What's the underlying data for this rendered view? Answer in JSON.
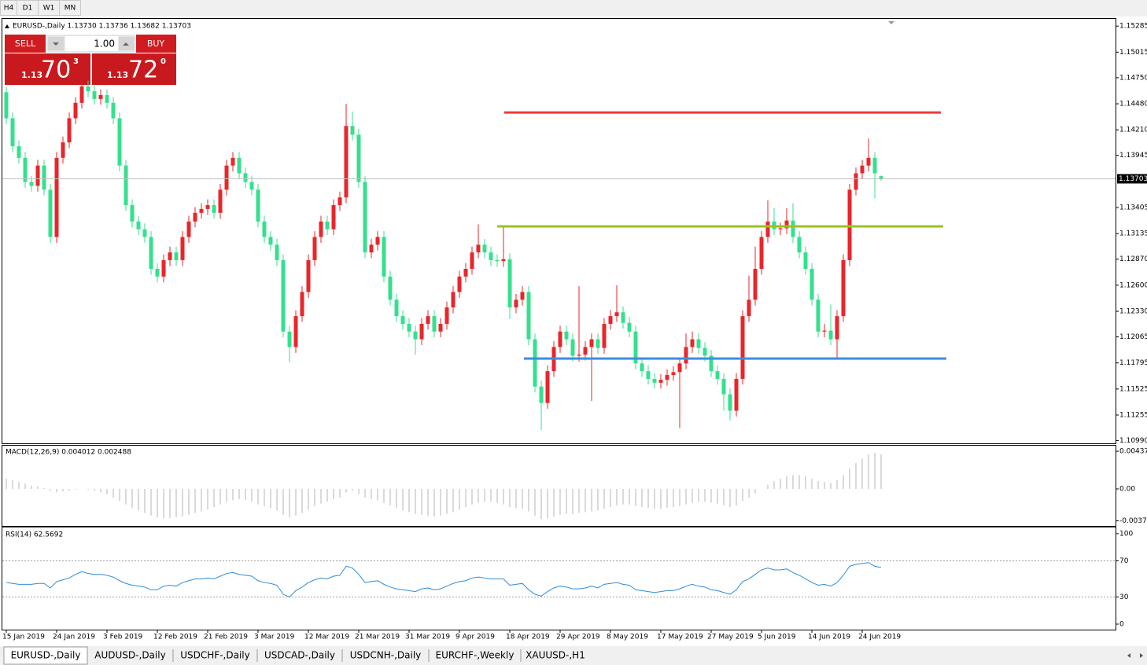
{
  "toolbar": {
    "timeframes": [
      "H4",
      "D1",
      "W1",
      "MN"
    ]
  },
  "trade_panel": {
    "sell": "SELL",
    "buy": "BUY",
    "lots": "1.00",
    "sell_big": "1.13",
    "sell_main": "70",
    "sell_sup": "3",
    "buy_big": "1.13",
    "buy_main": "72",
    "buy_sup": "0"
  },
  "tabs": [
    "EURUSD-,Daily",
    "AUDUSD-,Daily",
    "USDCHF-,Daily",
    "USDCAD-,Daily",
    "USDCNH-,Daily",
    "EURCHF-,Weekly",
    "XAUUSD-,H1"
  ],
  "chart_data": [
    {
      "type": "candlestick",
      "title": "EURUSD-,Daily  1.13730 1.13736 1.13682 1.13703",
      "up_color": "#e8262b",
      "down_color": "#34e08e",
      "ylim": [
        1.1097,
        1.1536
      ],
      "yticks": [
        1.15285,
        1.15015,
        {
          "value": 1.1475,
          "label": "1.14750"
        },
        {
          "value": 1.1448,
          "label": "1.14480"
        },
        {
          "value": 1.1421,
          "label": "1.14210"
        },
        1.13945,
        1.13405,
        1.13135,
        {
          "value": 1.1287,
          "label": "1.12870"
        },
        {
          "value": 1.126,
          "label": "1.12600"
        },
        {
          "value": 1.1233,
          "label": "1.12330"
        },
        1.12065,
        1.11795,
        1.11525,
        1.11255,
        {
          "value": 1.1099,
          "label": "1.10990"
        }
      ],
      "current_price": 1.13703,
      "levels": [
        {
          "value": 1.1439,
          "color": "#f03a3a"
        },
        {
          "value": 1.1321,
          "color": "#9ac31c"
        },
        {
          "value": 1.1184,
          "color": "#3b8ee0"
        }
      ],
      "date_labels": [
        "15 Jan 2019",
        "24 Jan 2019",
        "3 Feb 2019",
        "12 Feb 2019",
        "21 Feb 2019",
        "3 Mar 2019",
        "12 Mar 2019",
        "21 Mar 2019",
        "31 Mar 2019",
        "9 Apr 2019",
        "18 Apr 2019",
        "29 Apr 2019",
        "8 May 2019",
        "17 May 2019",
        "27 May 2019",
        "5 Jun 2019",
        "14 Jun 2019",
        "24 Jun 2019"
      ],
      "candles": [
        [
          1.146,
          1.1466,
          1.1427,
          1.1433
        ],
        [
          1.1433,
          1.1439,
          1.1398,
          1.1404
        ],
        [
          1.1404,
          1.141,
          1.1386,
          1.1392
        ],
        [
          1.1392,
          1.1398,
          1.1361,
          1.1367
        ],
        [
          1.1367,
          1.1373,
          1.1357,
          1.1363
        ],
        [
          1.1363,
          1.139,
          1.1357,
          1.1384
        ],
        [
          1.1384,
          1.139,
          1.1353,
          1.1359
        ],
        [
          1.1359,
          1.1365,
          1.1304,
          1.131
        ],
        [
          1.131,
          1.1398,
          1.1304,
          1.1392
        ],
        [
          1.1392,
          1.1414,
          1.1386,
          1.1408
        ],
        [
          1.1408,
          1.1439,
          1.1402,
          1.1433
        ],
        [
          1.1433,
          1.1455,
          1.1427,
          1.1449
        ],
        [
          1.1449,
          1.1472,
          1.1443,
          1.1466
        ],
        [
          1.1466,
          1.1472,
          1.1455,
          1.1461
        ],
        [
          1.1461,
          1.1467,
          1.1447,
          1.1453
        ],
        [
          1.1453,
          1.1463,
          1.1447,
          1.1457
        ],
        [
          1.1457,
          1.1463,
          1.1443,
          1.1449
        ],
        [
          1.1449,
          1.1455,
          1.1427,
          1.1433
        ],
        [
          1.1433,
          1.1439,
          1.1378,
          1.1384
        ],
        [
          1.1384,
          1.139,
          1.1337,
          1.1343
        ],
        [
          1.1343,
          1.1349,
          1.132,
          1.1326
        ],
        [
          1.1326,
          1.1332,
          1.1312,
          1.1318
        ],
        [
          1.1318,
          1.1324,
          1.1304,
          1.131
        ],
        [
          1.131,
          1.1316,
          1.1271,
          1.1277
        ],
        [
          1.1277,
          1.1283,
          1.1263,
          1.1269
        ],
        [
          1.1269,
          1.1292,
          1.1263,
          1.1286
        ],
        [
          1.1286,
          1.13,
          1.128,
          1.1294
        ],
        [
          1.1294,
          1.13,
          1.128,
          1.1286
        ],
        [
          1.1286,
          1.1316,
          1.128,
          1.131
        ],
        [
          1.131,
          1.1332,
          1.1304,
          1.1326
        ],
        [
          1.1326,
          1.1341,
          1.132,
          1.1335
        ],
        [
          1.1335,
          1.1345,
          1.1329,
          1.1339
        ],
        [
          1.1339,
          1.1349,
          1.1333,
          1.1343
        ],
        [
          1.1343,
          1.1349,
          1.1329,
          1.1335
        ],
        [
          1.1335,
          1.1365,
          1.1329,
          1.1359
        ],
        [
          1.1359,
          1.139,
          1.1353,
          1.1384
        ],
        [
          1.1384,
          1.1398,
          1.1378,
          1.1392
        ],
        [
          1.1392,
          1.1398,
          1.137,
          1.1376
        ],
        [
          1.1376,
          1.1382,
          1.1361,
          1.1367
        ],
        [
          1.1367,
          1.1373,
          1.1353,
          1.1359
        ],
        [
          1.1359,
          1.1365,
          1.132,
          1.1326
        ],
        [
          1.1326,
          1.1332,
          1.1304,
          1.131
        ],
        [
          1.131,
          1.1316,
          1.1296,
          1.1302
        ],
        [
          1.1302,
          1.1308,
          1.128,
          1.1286
        ],
        [
          1.1286,
          1.1292,
          1.1206,
          1.1212
        ],
        [
          1.1212,
          1.1218,
          1.118,
          1.1196
        ],
        [
          1.1196,
          1.1234,
          1.119,
          1.1228
        ],
        [
          1.1228,
          1.1259,
          1.1222,
          1.1253
        ],
        [
          1.1253,
          1.1292,
          1.1247,
          1.1286
        ],
        [
          1.1286,
          1.1316,
          1.128,
          1.131
        ],
        [
          1.131,
          1.1332,
          1.1304,
          1.1326
        ],
        [
          1.1326,
          1.1332,
          1.1312,
          1.1318
        ],
        [
          1.1318,
          1.1349,
          1.1312,
          1.1343
        ],
        [
          1.1343,
          1.1357,
          1.1337,
          1.1351
        ],
        [
          1.1351,
          1.1448,
          1.1345,
          1.1425
        ],
        [
          1.1425,
          1.144,
          1.141,
          1.1416
        ],
        [
          1.1416,
          1.1422,
          1.1361,
          1.1367
        ],
        [
          1.1367,
          1.1373,
          1.1288,
          1.1294
        ],
        [
          1.1294,
          1.1308,
          1.1288,
          1.1302
        ],
        [
          1.1302,
          1.1316,
          1.1296,
          1.131
        ],
        [
          1.131,
          1.1316,
          1.1263,
          1.1269
        ],
        [
          1.1269,
          1.1275,
          1.1239,
          1.1245
        ],
        [
          1.1245,
          1.1251,
          1.1222,
          1.1228
        ],
        [
          1.1228,
          1.1234,
          1.1214,
          1.122
        ],
        [
          1.122,
          1.1226,
          1.1206,
          1.1212
        ],
        [
          1.1212,
          1.1218,
          1.1188,
          1.1204
        ],
        [
          1.1204,
          1.1226,
          1.1198,
          1.122
        ],
        [
          1.122,
          1.1234,
          1.1214,
          1.1228
        ],
        [
          1.1228,
          1.1234,
          1.1206,
          1.1212
        ],
        [
          1.1212,
          1.1226,
          1.1206,
          1.122
        ],
        [
          1.122,
          1.1243,
          1.1214,
          1.1237
        ],
        [
          1.1237,
          1.1259,
          1.1231,
          1.1253
        ],
        [
          1.1253,
          1.1275,
          1.1247,
          1.1269
        ],
        [
          1.1269,
          1.1283,
          1.1263,
          1.1277
        ],
        [
          1.1277,
          1.13,
          1.1271,
          1.1294
        ],
        [
          1.1294,
          1.1323,
          1.1288,
          1.1302
        ],
        [
          1.1302,
          1.1308,
          1.1288,
          1.1294
        ],
        [
          1.1294,
          1.13,
          1.128,
          1.1286
        ],
        [
          1.1286,
          1.1292,
          1.1279,
          1.1285
        ],
        [
          1.1285,
          1.1321,
          1.1279,
          1.1287
        ],
        [
          1.1287,
          1.1293,
          1.1225,
          1.1237
        ],
        [
          1.1237,
          1.1251,
          1.1231,
          1.1245
        ],
        [
          1.1245,
          1.1259,
          1.1239,
          1.1253
        ],
        [
          1.1253,
          1.1259,
          1.1198,
          1.1204
        ],
        [
          1.1204,
          1.121,
          1.1149,
          1.1155
        ],
        [
          1.1155,
          1.1161,
          1.111,
          1.1138
        ],
        [
          1.1138,
          1.1177,
          1.1132,
          1.1171
        ],
        [
          1.1171,
          1.1202,
          1.1165,
          1.1196
        ],
        [
          1.1196,
          1.1218,
          1.119,
          1.1212
        ],
        [
          1.1212,
          1.1218,
          1.1198,
          1.1204
        ],
        [
          1.1204,
          1.121,
          1.1181,
          1.1187
        ],
        [
          1.1187,
          1.1259,
          1.1181,
          1.1188
        ],
        [
          1.1188,
          1.1202,
          1.1182,
          1.1196
        ],
        [
          1.1196,
          1.121,
          1.114,
          1.1204
        ],
        [
          1.1204,
          1.121,
          1.1189,
          1.1195
        ],
        [
          1.1195,
          1.1226,
          1.1189,
          1.122
        ],
        [
          1.122,
          1.1234,
          1.1214,
          1.1228
        ],
        [
          1.1228,
          1.126,
          1.1222,
          1.1232
        ],
        [
          1.1232,
          1.1238,
          1.1215,
          1.1221
        ],
        [
          1.1221,
          1.1227,
          1.1206,
          1.1212
        ],
        [
          1.1212,
          1.1218,
          1.1173,
          1.1179
        ],
        [
          1.1179,
          1.1185,
          1.1165,
          1.1171
        ],
        [
          1.1171,
          1.1177,
          1.1157,
          1.1163
        ],
        [
          1.1163,
          1.1169,
          1.1153,
          1.1159
        ],
        [
          1.1159,
          1.1168,
          1.1153,
          1.1162
        ],
        [
          1.1162,
          1.1173,
          1.1156,
          1.1167
        ],
        [
          1.1167,
          1.1176,
          1.1161,
          1.117
        ],
        [
          1.117,
          1.1185,
          1.1112,
          1.1179
        ],
        [
          1.1179,
          1.121,
          1.1173,
          1.1196
        ],
        [
          1.1196,
          1.1212,
          1.119,
          1.1204
        ],
        [
          1.1204,
          1.121,
          1.1189,
          1.1195
        ],
        [
          1.1195,
          1.1201,
          1.1181,
          1.1187
        ],
        [
          1.1187,
          1.1193,
          1.1165,
          1.1171
        ],
        [
          1.1171,
          1.1177,
          1.1157,
          1.1163
        ],
        [
          1.1163,
          1.1169,
          1.113,
          1.1147
        ],
        [
          1.1147,
          1.1153,
          1.112,
          1.113
        ],
        [
          1.113,
          1.1169,
          1.1124,
          1.1163
        ],
        [
          1.1163,
          1.1234,
          1.1157,
          1.1228
        ],
        [
          1.1228,
          1.127,
          1.1222,
          1.1245
        ],
        [
          1.1245,
          1.13,
          1.1239,
          1.1277
        ],
        [
          1.1277,
          1.1316,
          1.1271,
          1.131
        ],
        [
          1.131,
          1.1348,
          1.1304,
          1.1326
        ],
        [
          1.1326,
          1.134,
          1.1312,
          1.1318
        ],
        [
          1.1318,
          1.1325,
          1.1312,
          1.1319
        ],
        [
          1.1319,
          1.134,
          1.1313,
          1.1327
        ],
        [
          1.1327,
          1.1345,
          1.1304,
          1.131
        ],
        [
          1.131,
          1.1316,
          1.1288,
          1.1294
        ],
        [
          1.1294,
          1.13,
          1.1271,
          1.1277
        ],
        [
          1.1277,
          1.1283,
          1.1239,
          1.1245
        ],
        [
          1.1245,
          1.1251,
          1.1206,
          1.1212
        ],
        [
          1.1212,
          1.122,
          1.1206,
          1.1213
        ],
        [
          1.1213,
          1.124,
          1.1198,
          1.1204
        ],
        [
          1.1204,
          1.1234,
          1.1185,
          1.1228
        ],
        [
          1.1228,
          1.1292,
          1.1222,
          1.1286
        ],
        [
          1.1286,
          1.1365,
          1.128,
          1.1359
        ],
        [
          1.1359,
          1.1382,
          1.1353,
          1.1376
        ],
        [
          1.1376,
          1.139,
          1.137,
          1.1384
        ],
        [
          1.1384,
          1.1412,
          1.1378,
          1.1392
        ],
        [
          1.1392,
          1.1398,
          1.135,
          1.1376
        ],
        [
          1.1373,
          1.13736,
          1.13682,
          1.13703
        ]
      ]
    },
    {
      "type": "bar",
      "title": "MACD(12,26,9) 0.004012 0.002488",
      "color": "#b4b4b4",
      "ylim": [
        -0.00429,
        0.00502
      ],
      "yticks": [
        0.004379,
        {
          "value": 0,
          "label": "0.00"
        },
        -0.00371
      ],
      "values": [
        0.0012,
        0.001,
        0.0008,
        0.0006,
        0.0004,
        0.0003,
        0.0001,
        -0.0002,
        -0.0004,
        -0.0003,
        -0.0002,
        -0.0001,
        0,
        -0.0001,
        -0.0002,
        -0.0004,
        -0.0006,
        -0.001,
        -0.0014,
        -0.0018,
        -0.0022,
        -0.0025,
        -0.0028,
        -0.0031,
        -0.0033,
        -0.0034,
        -0.0034,
        -0.0033,
        -0.0032,
        -0.003,
        -0.0028,
        -0.0026,
        -0.0024,
        -0.0021,
        -0.0018,
        -0.0015,
        -0.0013,
        -0.0012,
        -0.0013,
        -0.0015,
        -0.0018,
        -0.002,
        -0.0022,
        -0.0025,
        -0.003,
        -0.0033,
        -0.0031,
        -0.0028,
        -0.0024,
        -0.002,
        -0.0017,
        -0.0015,
        -0.0012,
        -0.001,
        -0.0004,
        -0.0002,
        -0.0006,
        -0.001,
        -0.0012,
        -0.0013,
        -0.0016,
        -0.0019,
        -0.0022,
        -0.0025,
        -0.0027,
        -0.0029,
        -0.003,
        -0.0031,
        -0.0032,
        -0.0031,
        -0.0029,
        -0.0027,
        -0.0024,
        -0.0021,
        -0.0018,
        -0.0016,
        -0.0015,
        -0.0015,
        -0.0016,
        -0.0018,
        -0.0021,
        -0.0022,
        -0.0023,
        -0.0026,
        -0.0031,
        -0.0035,
        -0.0034,
        -0.0032,
        -0.003,
        -0.0029,
        -0.0029,
        -0.0028,
        -0.0027,
        -0.0026,
        -0.0025,
        -0.0023,
        -0.0021,
        -0.0019,
        -0.0018,
        -0.0018,
        -0.002,
        -0.0021,
        -0.0022,
        -0.0023,
        -0.0023,
        -0.0022,
        -0.0021,
        -0.002,
        -0.0018,
        -0.0016,
        -0.0015,
        -0.0015,
        -0.0016,
        -0.0017,
        -0.0019,
        -0.0021,
        -0.0019,
        -0.0014,
        -0.001,
        -0.0005,
        0,
        0.0005,
        0.0009,
        0.0012,
        0.0015,
        0.0016,
        0.0016,
        0.0015,
        0.0012,
        0.0009,
        0.0008,
        0.0007,
        0.001,
        0.0016,
        0.0024,
        0.003,
        0.0035,
        0.004,
        0.0042,
        0.004
      ]
    },
    {
      "type": "line",
      "title": "RSI(14) 62.5692",
      "color": "#2b8de0",
      "ylim": [
        -5.2,
        106
      ],
      "yticks": [
        100,
        70,
        30,
        0
      ],
      "levels": [
        70,
        30
      ],
      "values": [
        46,
        45,
        44,
        44,
        44,
        45,
        45,
        40,
        47,
        49,
        51,
        55,
        58,
        56,
        55,
        55,
        54,
        52,
        48,
        45,
        43,
        42,
        41,
        38,
        38,
        42,
        43,
        42,
        46,
        48,
        50,
        50,
        51,
        50,
        53,
        56,
        57,
        55,
        54,
        53,
        48,
        46,
        45,
        43,
        33,
        30,
        37,
        41,
        46,
        49,
        51,
        50,
        53,
        54,
        64,
        62,
        55,
        46,
        47,
        48,
        44,
        41,
        39,
        38,
        37,
        36,
        39,
        40,
        38,
        39,
        42,
        45,
        47,
        48,
        51,
        52,
        51,
        50,
        50,
        50,
        43,
        44,
        45,
        38,
        33,
        31,
        36,
        40,
        42,
        41,
        39,
        39,
        40,
        42,
        40,
        44,
        45,
        46,
        44,
        43,
        38,
        37,
        36,
        35,
        36,
        37,
        37,
        39,
        42,
        44,
        42,
        41,
        38,
        37,
        35,
        33,
        38,
        47,
        50,
        55,
        60,
        62,
        60,
        60,
        61,
        57,
        54,
        50,
        46,
        43,
        44,
        42,
        46,
        54,
        64,
        66,
        67,
        68,
        64,
        62.5692
      ]
    }
  ]
}
